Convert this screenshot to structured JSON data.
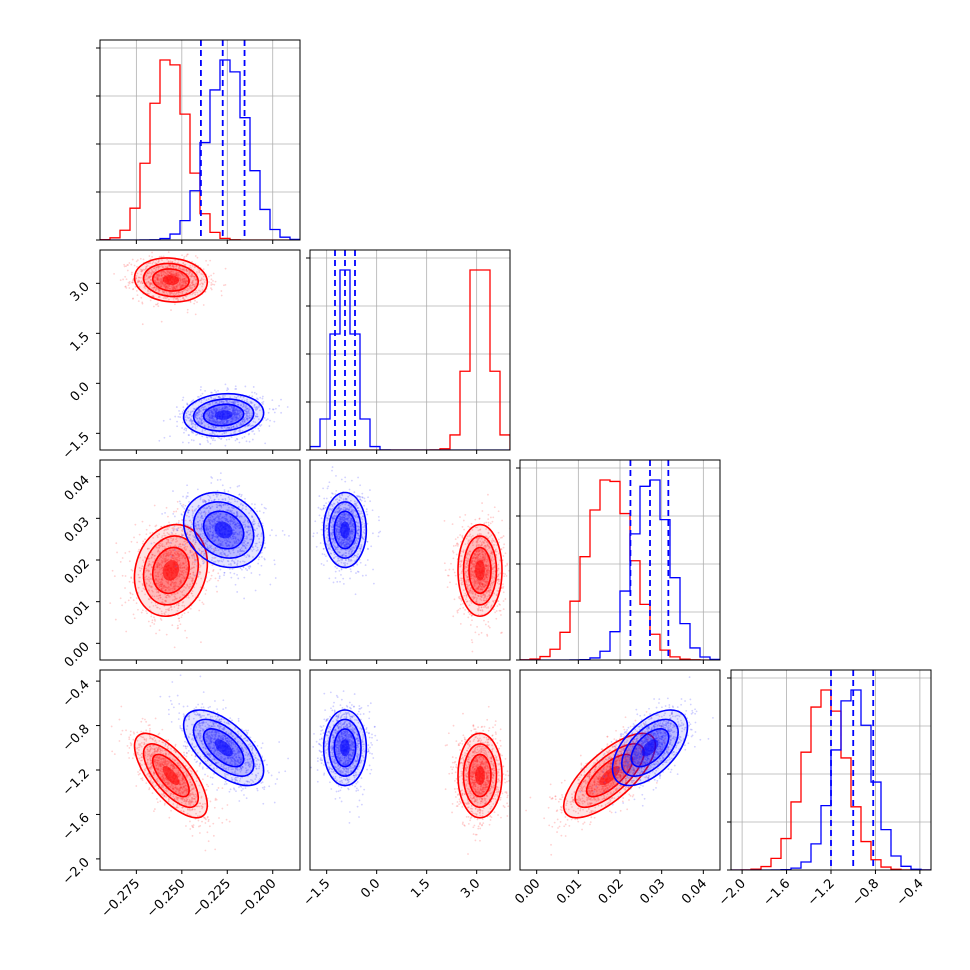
{
  "chart_data": {
    "type": "corner",
    "grid": true,
    "colors": {
      "series_a": "#ff0000",
      "series_b": "#0000ff"
    },
    "params": [
      {
        "range": [
          -0.295,
          -0.185
        ],
        "ticks": [
          -0.275,
          -0.25,
          -0.225,
          -0.2
        ],
        "tick_labels": [
          "−0.275",
          "−0.250",
          "−0.225",
          "−0.200"
        ]
      },
      {
        "range": [
          -2.0,
          4.0
        ],
        "ticks": [
          -1.5,
          0.0,
          1.5,
          3.0
        ],
        "tick_labels": [
          "−1.5",
          "0.0",
          "1.5",
          "3.0"
        ]
      },
      {
        "range": [
          -0.004,
          0.044
        ],
        "ticks": [
          0.0,
          0.01,
          0.02,
          0.03,
          0.04
        ],
        "tick_labels": [
          "0.00",
          "0.01",
          "0.02",
          "0.03",
          "0.04"
        ]
      },
      {
        "range": [
          -2.1,
          -0.3
        ],
        "ticks": [
          -2.0,
          -1.6,
          -1.2,
          -0.8,
          -0.4
        ],
        "tick_labels": [
          "−2.0",
          "−1.6",
          "−1.2",
          "−0.8",
          "−0.4"
        ]
      }
    ],
    "series": [
      {
        "color": "#ff0000",
        "mean": [
          -0.256,
          3.1,
          0.0175,
          -1.25
        ],
        "std": [
          0.01,
          0.33,
          0.0055,
          0.19
        ],
        "corr": {
          "0-1": -0.1,
          "0-2": 0.15,
          "0-3": -0.7,
          "1-2": 0.0,
          "1-3": 0.0,
          "2-3": 0.72
        }
      },
      {
        "color": "#0000ff",
        "mean": [
          -0.227,
          -0.95,
          0.0272,
          -1.0
        ],
        "std": [
          0.011,
          0.32,
          0.0045,
          0.17
        ],
        "corr": {
          "0-1": 0.1,
          "0-2": -0.2,
          "0-3": -0.6,
          "1-2": 0.0,
          "1-3": 0.0,
          "2-3": 0.55
        }
      }
    ],
    "quantile_lines": [
      [
        -0.2395,
        -0.2275,
        -0.2155
      ],
      [
        -1.25,
        -0.95,
        -0.65
      ],
      [
        0.0225,
        0.0272,
        0.0316
      ],
      [
        -1.2,
        -1.0,
        -0.82
      ]
    ],
    "hist_peaks": [
      [
        -0.257,
        -0.225
      ],
      [
        3.1,
        -0.95
      ],
      [
        0.0175,
        0.0275
      ],
      [
        -1.25,
        -1.0
      ]
    ]
  }
}
